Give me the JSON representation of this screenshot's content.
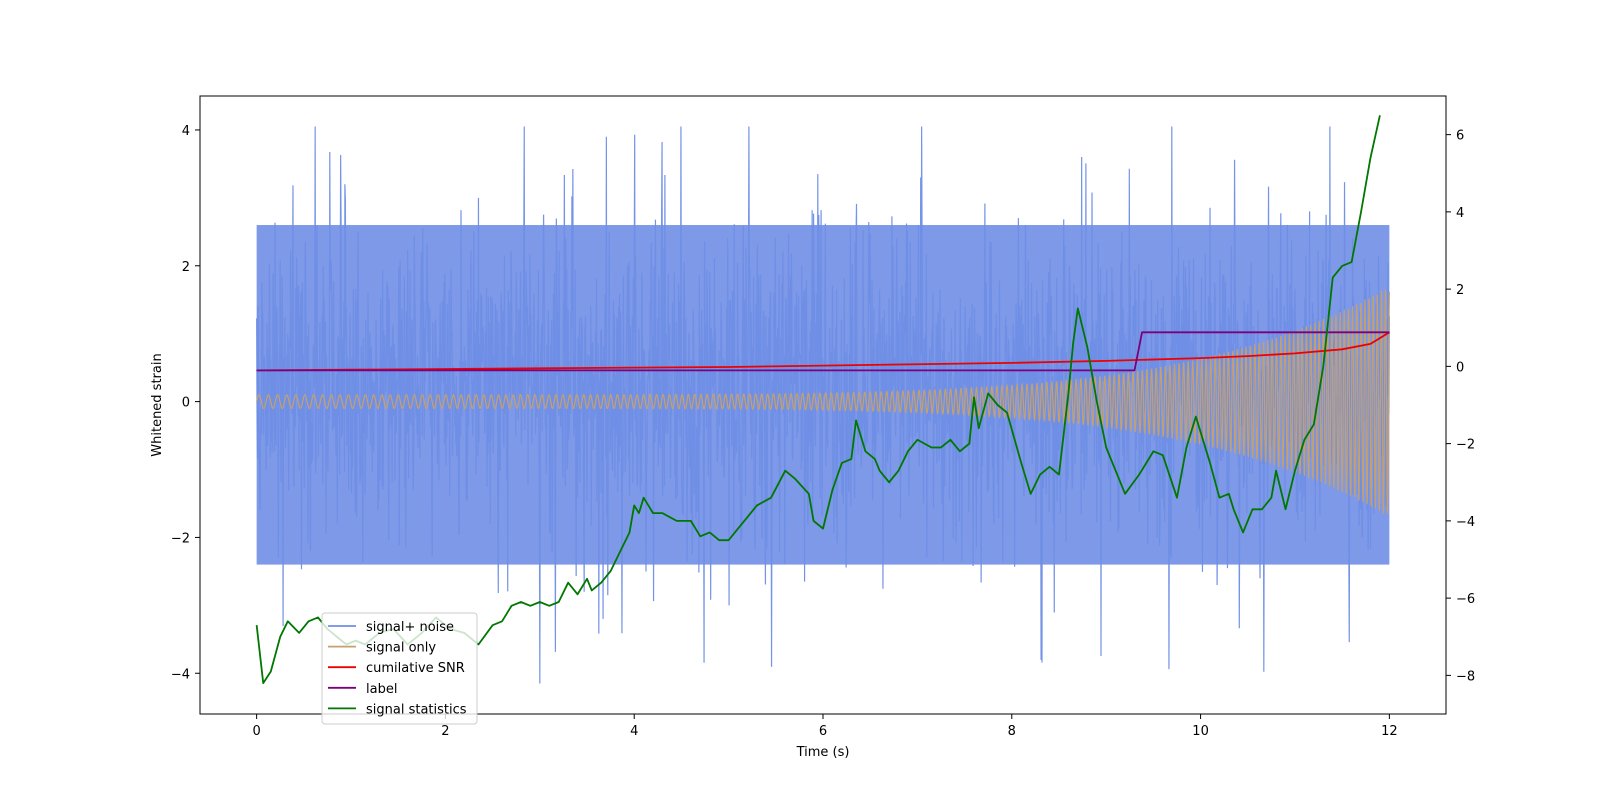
{
  "chart_data": {
    "type": "line",
    "xlabel": "Time (s)",
    "ylabel": "Whitened strain",
    "y2label": "",
    "xlim": [
      -0.6,
      12.6
    ],
    "ylim": [
      -4.6,
      4.5
    ],
    "y2lim": [
      -9.0,
      7.0
    ],
    "xticks": [
      0,
      2,
      4,
      6,
      8,
      10,
      12
    ],
    "yticks": [
      -4,
      -2,
      0,
      2,
      4
    ],
    "y2ticks": [
      -8,
      -6,
      -4,
      -2,
      0,
      2,
      4,
      6
    ],
    "grid": false,
    "legend_position": "lower-left",
    "noise_band": {
      "x_range": [
        0,
        12
      ],
      "typical_range": [
        -2.4,
        2.6
      ],
      "extremes": {
        "min": -4.15,
        "max": 4.05
      }
    },
    "series": [
      {
        "name": "signal+ noise",
        "color": "#6f8ee6",
        "axis": "left",
        "kind": "noise"
      },
      {
        "name": "signal only",
        "color": "#c4a070",
        "axis": "left",
        "kind": "chirp",
        "amplitude_start": 0.1,
        "amplitude_end": 1.7
      },
      {
        "name": "cumilative SNR",
        "color": "#ee0000",
        "axis": "left",
        "x": [
          0,
          1,
          2,
          3,
          4,
          5,
          6,
          7,
          8,
          9,
          10,
          10.5,
          11,
          11.5,
          11.8,
          12
        ],
        "y": [
          0.46,
          0.47,
          0.48,
          0.49,
          0.5,
          0.51,
          0.53,
          0.55,
          0.57,
          0.6,
          0.64,
          0.67,
          0.71,
          0.77,
          0.85,
          1.02
        ]
      },
      {
        "name": "label",
        "color": "#7b007b",
        "axis": "left",
        "x": [
          0,
          9.3,
          9.38,
          12
        ],
        "y": [
          0.46,
          0.46,
          1.02,
          1.02
        ]
      },
      {
        "name": "signal statistics",
        "color": "#007700",
        "axis": "right",
        "x": [
          0,
          0.07,
          0.15,
          0.25,
          0.33,
          0.45,
          0.55,
          0.65,
          0.75,
          0.85,
          0.95,
          1.05,
          1.15,
          1.3,
          1.45,
          1.6,
          1.75,
          1.9,
          2.05,
          2.2,
          2.35,
          2.5,
          2.6,
          2.7,
          2.8,
          2.9,
          3.0,
          3.1,
          3.2,
          3.3,
          3.4,
          3.5,
          3.55,
          3.65,
          3.75,
          3.85,
          3.95,
          4.0,
          4.05,
          4.1,
          4.15,
          4.2,
          4.3,
          4.45,
          4.6,
          4.7,
          4.8,
          4.9,
          5.0,
          5.1,
          5.2,
          5.3,
          5.45,
          5.6,
          5.7,
          5.85,
          5.9,
          6.0,
          6.1,
          6.2,
          6.3,
          6.35,
          6.45,
          6.55,
          6.6,
          6.7,
          6.8,
          6.9,
          7.0,
          7.15,
          7.25,
          7.35,
          7.45,
          7.55,
          7.6,
          7.65,
          7.75,
          7.85,
          7.95,
          8.1,
          8.2,
          8.3,
          8.4,
          8.5,
          8.6,
          8.65,
          8.7,
          8.8,
          8.9,
          9.0,
          9.2,
          9.35,
          9.5,
          9.6,
          9.75,
          9.85,
          9.95,
          10.1,
          10.2,
          10.3,
          10.35,
          10.45,
          10.55,
          10.65,
          10.75,
          10.8,
          10.9,
          11.0,
          11.1,
          11.2,
          11.3,
          11.4,
          11.5,
          11.6,
          11.7,
          11.8,
          11.9
        ],
        "y": [
          -6.7,
          -8.2,
          -7.9,
          -7.0,
          -6.6,
          -6.9,
          -6.6,
          -6.5,
          -6.8,
          -7.0,
          -7.2,
          -7.1,
          -7.2,
          -6.9,
          -6.8,
          -7.2,
          -6.9,
          -6.5,
          -6.8,
          -6.9,
          -7.2,
          -6.7,
          -6.6,
          -6.2,
          -6.1,
          -6.2,
          -6.1,
          -6.2,
          -6.1,
          -5.6,
          -5.9,
          -5.5,
          -5.8,
          -5.6,
          -5.3,
          -4.8,
          -4.3,
          -3.6,
          -3.8,
          -3.4,
          -3.6,
          -3.8,
          -3.8,
          -4.0,
          -4.0,
          -4.4,
          -4.3,
          -4.5,
          -4.5,
          -4.2,
          -3.9,
          -3.6,
          -3.4,
          -2.7,
          -2.9,
          -3.3,
          -4.0,
          -4.2,
          -3.2,
          -2.5,
          -2.4,
          -1.4,
          -2.2,
          -2.4,
          -2.7,
          -3.0,
          -2.7,
          -2.2,
          -1.9,
          -2.1,
          -2.1,
          -1.9,
          -2.2,
          -2.0,
          -0.8,
          -1.6,
          -0.7,
          -1.0,
          -1.2,
          -2.5,
          -3.3,
          -2.8,
          -2.6,
          -2.8,
          -0.7,
          0.6,
          1.5,
          0.5,
          -0.9,
          -2.1,
          -3.3,
          -2.8,
          -2.2,
          -2.3,
          -3.4,
          -2.1,
          -1.3,
          -2.5,
          -3.4,
          -3.3,
          -3.7,
          -4.3,
          -3.7,
          -3.7,
          -3.4,
          -2.7,
          -3.7,
          -2.7,
          -1.9,
          -1.5,
          0.0,
          2.3,
          2.6,
          2.7,
          4.0,
          5.4,
          6.5
        ]
      }
    ]
  }
}
